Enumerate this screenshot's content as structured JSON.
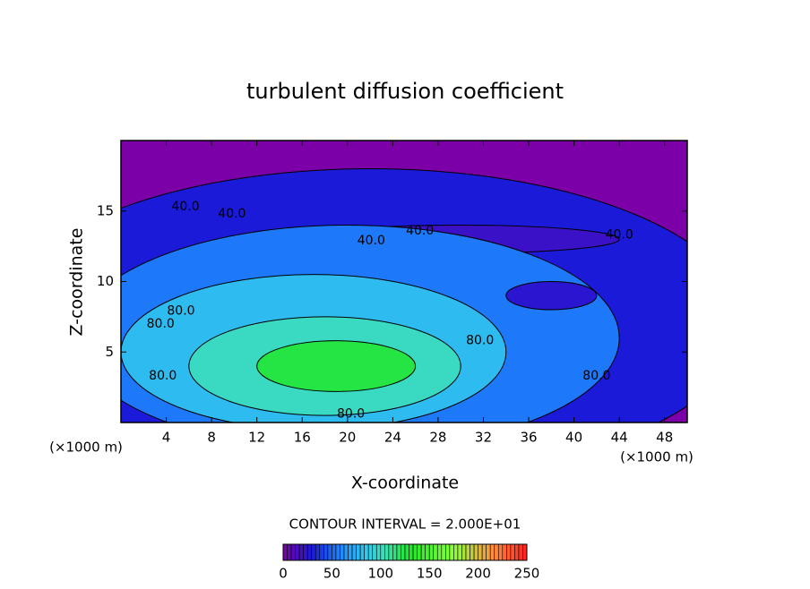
{
  "chart_data": {
    "type": "contour",
    "title": "turbulent diffusion coefficient",
    "xlabel": "X-coordinate",
    "ylabel": "Z-coordinate",
    "x_unit_label": "(×1000 m)",
    "xlim": [
      0,
      50
    ],
    "ylim": [
      0,
      20
    ],
    "xticks": [
      4,
      8,
      12,
      16,
      20,
      24,
      28,
      32,
      36,
      40,
      44,
      48
    ],
    "yticks": [
      5,
      10,
      15
    ],
    "background_level": 0,
    "regions": [
      {
        "level": 30,
        "cx": 22,
        "cy": 7,
        "rx": 33,
        "ry": 11
      },
      {
        "level": 20,
        "cx": 30,
        "cy": 13,
        "rx": 14,
        "ry": 1.0
      },
      {
        "level": 55,
        "cx": 20,
        "cy": 6,
        "rx": 24,
        "ry": 8
      },
      {
        "level": 25,
        "cx": 38,
        "cy": 9,
        "rx": 4,
        "ry": 1.0
      },
      {
        "level": 80,
        "cx": 17,
        "cy": 5,
        "rx": 17,
        "ry": 5.5
      },
      {
        "level": 100,
        "cx": 18,
        "cy": 4,
        "rx": 12,
        "ry": 3.5
      },
      {
        "level": 125,
        "cx": 19,
        "cy": 4,
        "rx": 7,
        "ry": 1.8
      }
    ],
    "contour_labels": {
      "values": [
        40,
        40,
        40,
        40,
        40,
        80,
        80,
        80,
        80,
        80,
        80
      ],
      "value_labels": [
        "40.0",
        "40.0",
        "40.0",
        "40.0",
        "40.0",
        "80.0",
        "80.0",
        "80.0",
        "80.0",
        "80.0",
        "80.0"
      ],
      "x": [
        5.7,
        9.8,
        22.1,
        26.4,
        44,
        3.5,
        5.3,
        3.7,
        31.7,
        20.3,
        42
      ],
      "y": [
        15.3,
        14.8,
        12.9,
        13.6,
        13.3,
        7.0,
        7.9,
        3.3,
        5.8,
        0.6,
        3.3
      ]
    },
    "contour_interval_label": "CONTOUR INTERVAL = 2.000E+01",
    "colorbar": {
      "lim": [
        0,
        250
      ],
      "ticks": [
        0,
        50,
        100,
        150,
        200,
        250
      ]
    },
    "colormap": [
      {
        "value": 0,
        "color": "#7c00a8"
      },
      {
        "value": 30,
        "color": "#1a1ad8"
      },
      {
        "value": 60,
        "color": "#1e8cff"
      },
      {
        "value": 85,
        "color": "#32c8ec"
      },
      {
        "value": 105,
        "color": "#3ce0b4"
      },
      {
        "value": 130,
        "color": "#1ee628"
      },
      {
        "value": 175,
        "color": "#8cff3c"
      },
      {
        "value": 215,
        "color": "#ff9040"
      },
      {
        "value": 250,
        "color": "#ff2020"
      }
    ]
  }
}
